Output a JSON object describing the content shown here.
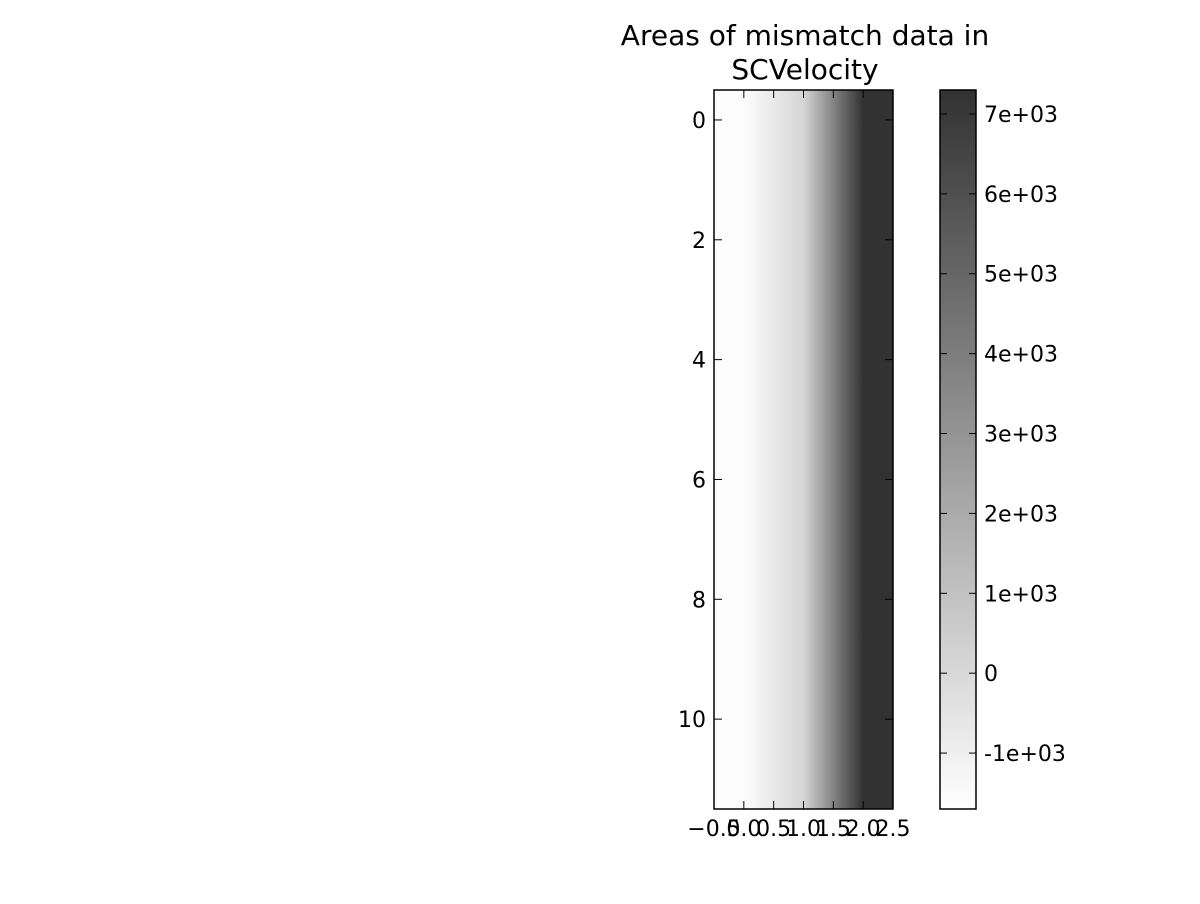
{
  "chart_data": {
    "type": "heatmap",
    "title": "Areas of mismatch data in SCVelocity",
    "title_lines": [
      "Areas of mismatch data in",
      "SCVelocity"
    ],
    "xlabel": "",
    "ylabel": "",
    "x": [
      0,
      1,
      2
    ],
    "y": [
      0,
      1,
      2,
      3,
      4,
      5,
      6,
      7,
      8,
      9,
      10,
      11
    ],
    "xlim": [
      -0.5,
      2.5
    ],
    "ylim": [
      11.5,
      -0.5
    ],
    "x_ticks": [
      -0.5,
      0.0,
      0.5,
      1.0,
      1.5,
      2.0,
      2.5
    ],
    "x_tick_labels": [
      "−0.5",
      "0.0",
      "0.5",
      "1.0",
      "1.5",
      "2.0",
      "2.5"
    ],
    "y_ticks": [
      0,
      2,
      4,
      6,
      8,
      10
    ],
    "y_tick_labels": [
      "0",
      "2",
      "4",
      "6",
      "8",
      "10"
    ],
    "row_values": [
      -1600,
      150,
      7300
    ],
    "colorbar": {
      "range": [
        -1700,
        7300
      ],
      "ticks": [
        -1000,
        0,
        1000,
        2000,
        3000,
        4000,
        5000,
        6000,
        7000
      ],
      "tick_labels": [
        "-1e+03",
        "0",
        "1e+03",
        "2e+03",
        "3e+03",
        "4e+03",
        "5e+03",
        "6e+03",
        "7e+03"
      ],
      "colormap": "greys",
      "color_low": "#ffffff",
      "color_high": "#323232"
    },
    "interpolation": "bilinear",
    "grid": false
  }
}
